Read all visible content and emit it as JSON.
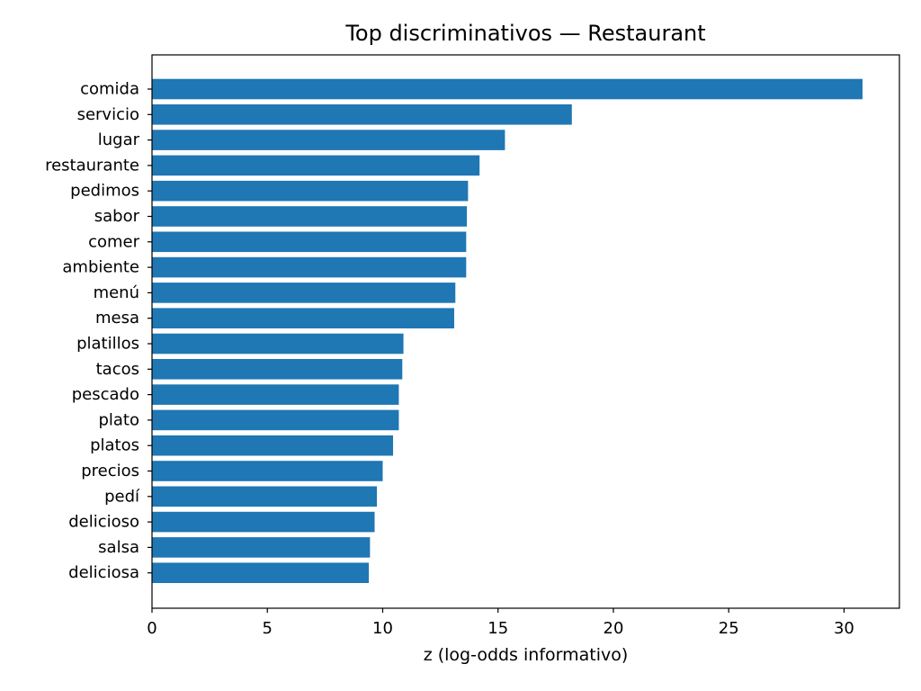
{
  "chart_data": {
    "type": "bar",
    "orientation": "horizontal",
    "title": "Top discriminativos — Restaurant",
    "xlabel": "z (log-odds informativo)",
    "ylabel": "",
    "categories": [
      "comida",
      "servicio",
      "lugar",
      "restaurante",
      "pedimos",
      "sabor",
      "comer",
      "ambiente",
      "menú",
      "mesa",
      "platillos",
      "tacos",
      "pescado",
      "plato",
      "platos",
      "precios",
      "pedí",
      "delicioso",
      "salsa",
      "deliciosa"
    ],
    "values": [
      30.8,
      18.2,
      15.3,
      14.2,
      13.7,
      13.65,
      13.62,
      13.62,
      13.15,
      13.1,
      10.9,
      10.85,
      10.7,
      10.7,
      10.45,
      10.0,
      9.75,
      9.65,
      9.45,
      9.4
    ],
    "xlim": [
      0,
      32.4
    ],
    "xticks": [
      0,
      5,
      10,
      15,
      20,
      25,
      30
    ],
    "grid": false,
    "bar_color": "#1f77b4"
  }
}
